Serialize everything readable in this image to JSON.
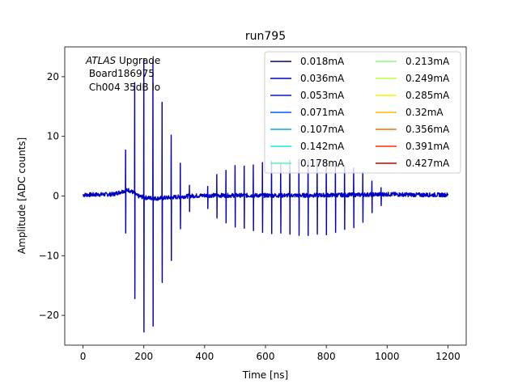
{
  "chart_data": {
    "type": "line",
    "title": "run795",
    "xlabel": "Time [ns]",
    "ylabel": "Amplitude [ADC counts]",
    "xlim": [
      -60,
      1260
    ],
    "ylim": [
      -25,
      25
    ],
    "xticks": [
      0,
      200,
      400,
      600,
      800,
      1000,
      1200
    ],
    "yticks": [
      -20,
      -10,
      0,
      10,
      20
    ],
    "grid": false,
    "legend_placement": "top-right",
    "legend_columns": 2,
    "annotation": {
      "line1_italic": "ATLAS",
      "line1_rest": " Upgrade",
      "line2": " Board186975",
      "line3": " Ch004 35dB lo"
    },
    "series": [
      {
        "name": "0.018mA",
        "color": "#00007f"
      },
      {
        "name": "0.036mA",
        "color": "#0000c4"
      },
      {
        "name": "0.053mA",
        "color": "#0010ff"
      },
      {
        "name": "0.071mA",
        "color": "#0058ff"
      },
      {
        "name": "0.107mA",
        "color": "#00a4ff"
      },
      {
        "name": "0.142mA",
        "color": "#12eee4"
      },
      {
        "name": "0.178mA",
        "color": "#4bffac"
      },
      {
        "name": "0.213mA",
        "color": "#84ff73"
      },
      {
        "name": "0.249mA",
        "color": "#beff39"
      },
      {
        "name": "0.285mA",
        "color": "#f4f802"
      },
      {
        "name": "0.32mA",
        "color": "#ffb800"
      },
      {
        "name": "0.356mA",
        "color": "#ff7100"
      },
      {
        "name": "0.391mA",
        "color": "#ff2e00"
      },
      {
        "name": "0.427mA",
        "color": "#c40000"
      }
    ],
    "pulses": [
      {
        "t": 140,
        "up": 7.7,
        "down": -6.2
      },
      {
        "t": 170,
        "up": 19.0,
        "down": -17.2
      },
      {
        "t": 200,
        "up": 23.0,
        "down": -22.8
      },
      {
        "t": 230,
        "up": 22.8,
        "down": -21.8
      },
      {
        "t": 260,
        "up": 15.7,
        "down": -14.5
      },
      {
        "t": 290,
        "up": 10.2,
        "down": -10.8
      },
      {
        "t": 320,
        "up": 5.5,
        "down": -5.5
      },
      {
        "t": 350,
        "up": 1.8,
        "down": -2.6
      },
      {
        "t": 410,
        "up": 1.6,
        "down": -2.1
      },
      {
        "t": 440,
        "up": 3.6,
        "down": -3.7
      },
      {
        "t": 470,
        "up": 4.3,
        "down": -4.5
      },
      {
        "t": 500,
        "up": 5.1,
        "down": -5.2
      },
      {
        "t": 530,
        "up": 5.0,
        "down": -5.4
      },
      {
        "t": 560,
        "up": 5.2,
        "down": -5.8
      },
      {
        "t": 590,
        "up": 5.6,
        "down": -6.1
      },
      {
        "t": 620,
        "up": 5.8,
        "down": -6.3
      },
      {
        "t": 650,
        "up": 5.4,
        "down": -6.2
      },
      {
        "t": 680,
        "up": 6.0,
        "down": -6.4
      },
      {
        "t": 710,
        "up": 6.1,
        "down": -6.6
      },
      {
        "t": 740,
        "up": 6.0,
        "down": -6.6
      },
      {
        "t": 770,
        "up": 5.9,
        "down": -6.4
      },
      {
        "t": 800,
        "up": 5.7,
        "down": -6.5
      },
      {
        "t": 830,
        "up": 5.4,
        "down": -6.1
      },
      {
        "t": 860,
        "up": 5.2,
        "down": -5.6
      },
      {
        "t": 890,
        "up": 4.7,
        "down": -5.3
      },
      {
        "t": 920,
        "up": 4.0,
        "down": -4.4
      },
      {
        "t": 950,
        "up": 2.5,
        "down": -2.8
      },
      {
        "t": 980,
        "up": 1.4,
        "down": -1.6
      }
    ],
    "baseline": [
      [
        0,
        0.2
      ],
      [
        100,
        0.3
      ],
      [
        130,
        0.8
      ],
      [
        150,
        1.0
      ],
      [
        165,
        0.6
      ],
      [
        180,
        0.0
      ],
      [
        210,
        -0.3
      ],
      [
        240,
        -0.4
      ],
      [
        270,
        -0.3
      ],
      [
        300,
        -0.2
      ],
      [
        350,
        0.0
      ],
      [
        400,
        0.1
      ],
      [
        500,
        0.1
      ],
      [
        700,
        0.1
      ],
      [
        900,
        0.2
      ],
      [
        1000,
        0.3
      ],
      [
        1100,
        0.2
      ],
      [
        1200,
        0.2
      ]
    ]
  }
}
